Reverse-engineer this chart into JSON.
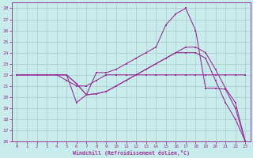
{
  "xlabel": "Windchill (Refroidissement éolien,°C)",
  "bg_color": "#c8ecec",
  "line_color": "#993399",
  "grid_color": "#aacccc",
  "xlim": [
    -0.5,
    23.5
  ],
  "ylim": [
    16,
    28.5
  ],
  "yticks": [
    16,
    17,
    18,
    19,
    20,
    21,
    22,
    23,
    24,
    25,
    26,
    27,
    28
  ],
  "xticks": [
    0,
    1,
    2,
    3,
    4,
    5,
    6,
    7,
    8,
    9,
    10,
    11,
    12,
    13,
    14,
    15,
    16,
    17,
    18,
    19,
    20,
    21,
    22,
    23
  ],
  "lines": [
    {
      "x": [
        0,
        1,
        2,
        3,
        4,
        5,
        6,
        7,
        8,
        9,
        10,
        11,
        12,
        13,
        14,
        15,
        16,
        17,
        18,
        19,
        20,
        21,
        22,
        23
      ],
      "y": [
        22,
        22,
        22,
        22,
        22,
        22,
        19.5,
        20.2,
        22.2,
        22.2,
        22.5,
        23,
        23.5,
        24,
        24.5,
        26.5,
        27.5,
        28,
        26,
        20.8,
        20.8,
        20.7,
        19,
        16
      ]
    },
    {
      "x": [
        0,
        1,
        2,
        3,
        4,
        5,
        6,
        7,
        8,
        9,
        10,
        11,
        12,
        13,
        14,
        15,
        16,
        17,
        18,
        19,
        20,
        21,
        22,
        23
      ],
      "y": [
        22,
        22,
        22,
        22,
        22,
        21.5,
        21,
        21,
        21.5,
        22,
        22,
        22,
        22,
        22,
        22,
        22,
        22,
        22,
        22,
        22,
        22,
        22,
        22,
        22
      ]
    },
    {
      "x": [
        0,
        1,
        2,
        3,
        4,
        5,
        6,
        7,
        8,
        9,
        10,
        11,
        12,
        13,
        14,
        15,
        16,
        17,
        18,
        19,
        20,
        21,
        22,
        23
      ],
      "y": [
        22,
        22,
        22,
        22,
        22,
        22,
        21.2,
        20.2,
        20.3,
        20.5,
        21,
        21.5,
        22,
        22.5,
        23,
        23.5,
        24,
        24.5,
        24.5,
        24,
        22.5,
        20.8,
        19.5,
        16
      ]
    },
    {
      "x": [
        0,
        1,
        2,
        3,
        4,
        5,
        6,
        7,
        8,
        9,
        10,
        11,
        12,
        13,
        14,
        15,
        16,
        17,
        18,
        19,
        20,
        21,
        22,
        23
      ],
      "y": [
        22,
        22,
        22,
        22,
        22,
        22,
        21.2,
        20.2,
        20.3,
        20.5,
        21,
        21.5,
        22,
        22.5,
        23,
        23.5,
        24,
        24,
        24,
        23.5,
        21.5,
        19.5,
        18,
        16
      ]
    }
  ]
}
